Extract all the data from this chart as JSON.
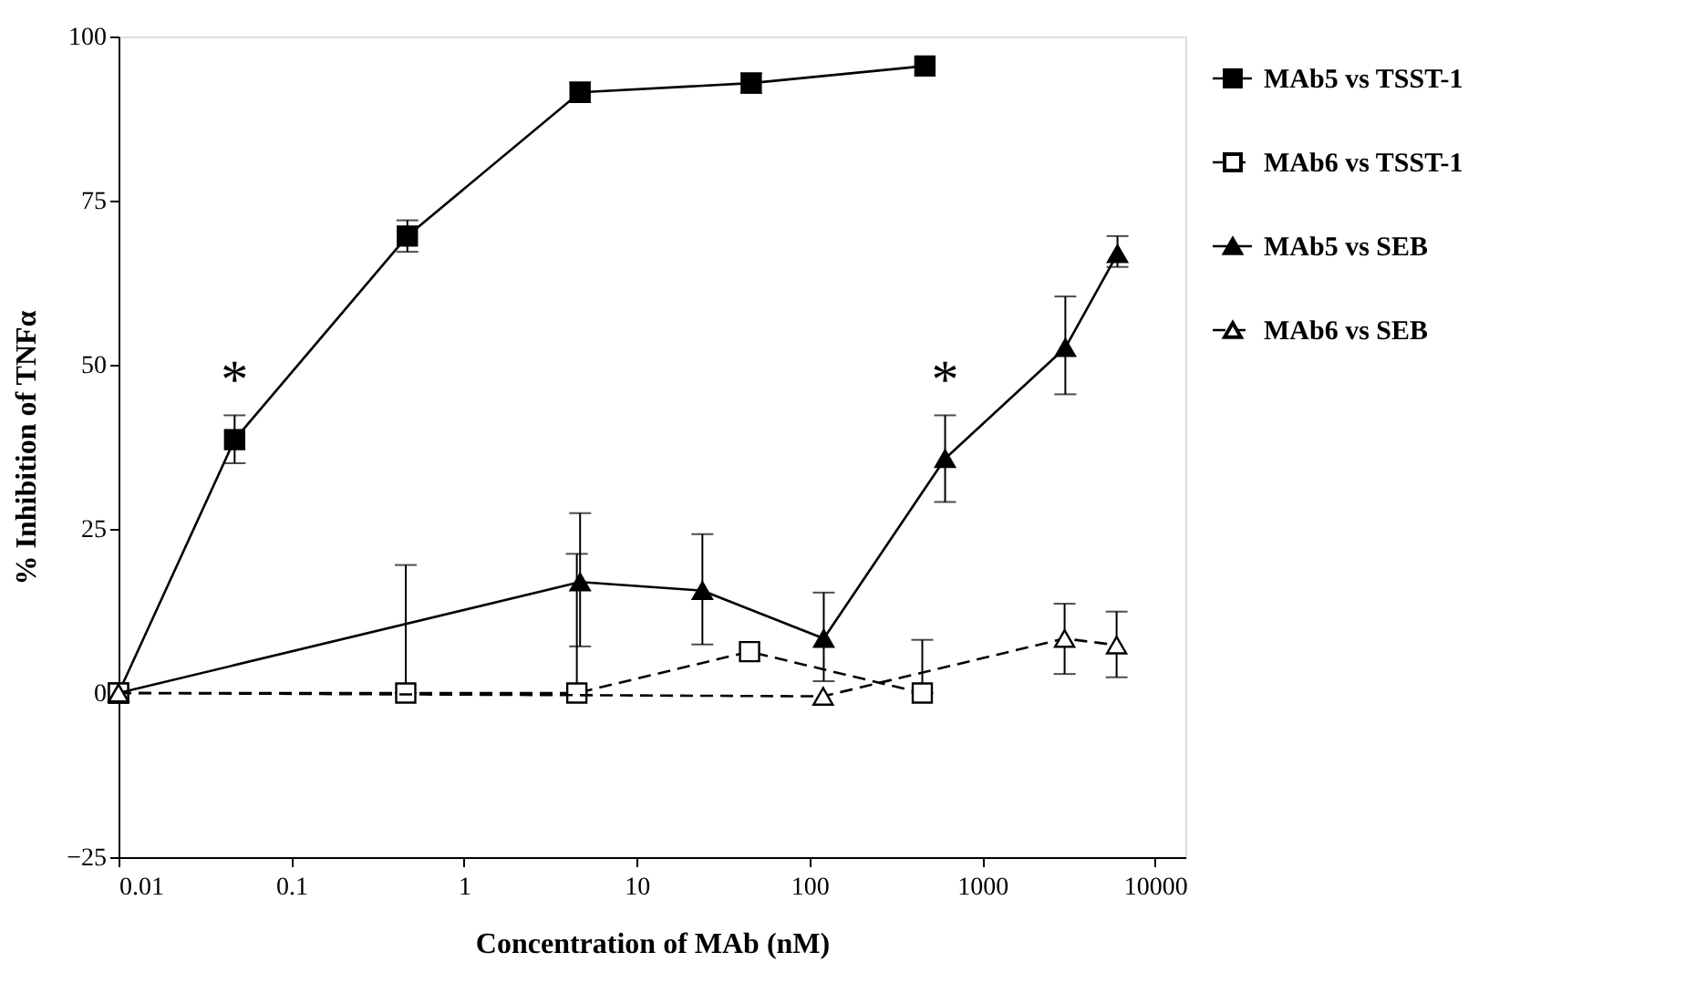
{
  "chart_data": {
    "type": "line",
    "xlabel": "Concentration of MAb (nM)",
    "ylabel": "% Inhibition of TNFα",
    "log": "x",
    "xlim": [
      0.01,
      15000
    ],
    "xticks": [
      0.01,
      0.1,
      1,
      10,
      100,
      1000,
      10000
    ],
    "ylim": [
      -25,
      100
    ],
    "yticks": [
      -25,
      0,
      25,
      50,
      75,
      100
    ],
    "grid": false,
    "legend": "right",
    "series": [
      {
        "name": "MAb5 vs TSST-1",
        "color": "#000000",
        "marker": "square",
        "line_style": "solid",
        "x": [
          0.01,
          0.047,
          0.47,
          4.7,
          46,
          466
        ],
        "values": [
          0,
          38.6,
          69.6,
          91.5,
          92.9,
          95.5
        ],
        "errors": [
          null,
          [
            35,
            42.3
          ],
          2.4,
          1.5,
          1.5,
          null
        ]
      },
      {
        "name": "MAb6 vs TSST-1",
        "color": "#000000",
        "marker": "square",
        "line_style": "dashed",
        "x": [
          0.01,
          0.46,
          4.5,
          45,
          450
        ],
        "values": [
          0,
          0,
          0,
          6.3,
          0
        ],
        "errors": [
          null,
          [
            0,
            19.5
          ],
          [
            0,
            21.2
          ],
          null,
          [
            0,
            8.1
          ]
        ]
      },
      {
        "name": "MAb5 vs SEB",
        "color": "#000000",
        "marker": "triangle",
        "line_style": "solid",
        "x": [
          0.01,
          4.7,
          24,
          121,
          610,
          3030,
          6070
        ],
        "values": [
          0,
          16.9,
          15.6,
          8.3,
          35.7,
          52.6,
          66.9
        ],
        "errors": [
          null,
          [
            7.1,
            27.4
          ],
          [
            7.4,
            24.2
          ],
          [
            1.8,
            15.3
          ],
          [
            29.1,
            42.3
          ],
          [
            45.5,
            60.4
          ],
          [
            64.9,
            69.6
          ]
        ]
      },
      {
        "name": "MAb6 vs SEB",
        "color": "#000000",
        "marker": "triangle",
        "line_style": "dashed",
        "x": [
          0.01,
          120,
          3000,
          6000
        ],
        "values": [
          0,
          -0.5,
          8.3,
          7.3
        ],
        "errors": [
          null,
          null,
          [
            2.9,
            13.6
          ],
          [
            2.4,
            12.4
          ]
        ]
      }
    ],
    "annotations": [
      "*",
      "*"
    ]
  }
}
